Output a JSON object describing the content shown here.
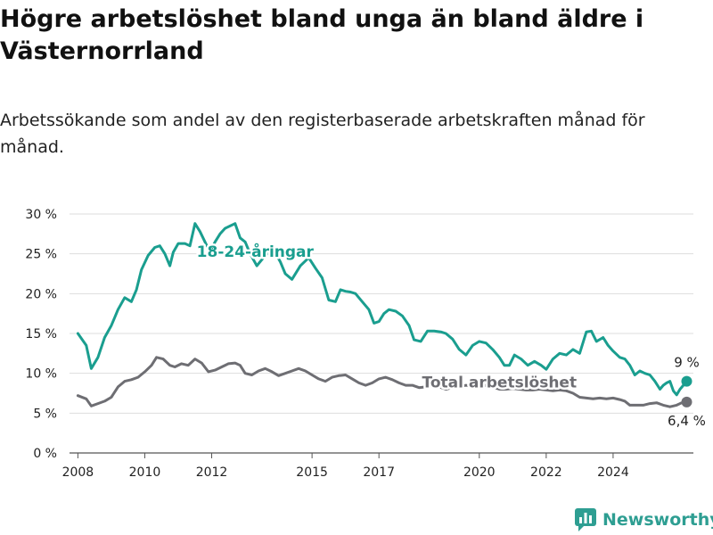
{
  "title": "Högre arbetslöshet bland unga än bland äldre i Västernorrland",
  "subtitle": "Arbetssökande som andel av den registerbaserade arbetskraften månad för månad.",
  "brand": {
    "name": "Newsworthy",
    "icon": "bar-chart-logo-icon",
    "color": "#2e9e92"
  },
  "chart_data": {
    "type": "line",
    "ylim": [
      0,
      30
    ],
    "xlim": [
      2007.5,
      2025.75
    ],
    "y_ticks": [
      0,
      5,
      10,
      15,
      20,
      25,
      30
    ],
    "y_tick_labels": [
      "0 %",
      "5 %",
      "10 %",
      "15 %",
      "20 %",
      "25 %",
      "30 %"
    ],
    "x_ticks": [
      2008,
      2010,
      2012,
      2015,
      2017,
      2020,
      2022,
      2024
    ],
    "x_tick_labels": [
      "2008",
      "2010",
      "2012",
      "2015",
      "2017",
      "2020",
      "2022",
      "2024"
    ],
    "grid": "horizontal",
    "series": [
      {
        "name": "18-24-åringar",
        "color": "#1a9e8f",
        "end_label": "9 %",
        "points": [
          [
            2008.0,
            15.0
          ],
          [
            2008.25,
            13.5
          ],
          [
            2008.4,
            10.6
          ],
          [
            2008.6,
            12.0
          ],
          [
            2008.8,
            14.5
          ],
          [
            2009.0,
            16.0
          ],
          [
            2009.2,
            18.0
          ],
          [
            2009.4,
            19.5
          ],
          [
            2009.6,
            19.0
          ],
          [
            2009.75,
            20.5
          ],
          [
            2009.9,
            23.0
          ],
          [
            2010.1,
            24.8
          ],
          [
            2010.3,
            25.8
          ],
          [
            2010.45,
            26.0
          ],
          [
            2010.6,
            25.0
          ],
          [
            2010.75,
            23.5
          ],
          [
            2010.85,
            25.2
          ],
          [
            2011.0,
            26.3
          ],
          [
            2011.2,
            26.3
          ],
          [
            2011.35,
            26.0
          ],
          [
            2011.5,
            28.8
          ],
          [
            2011.65,
            27.8
          ],
          [
            2011.8,
            26.5
          ],
          [
            2011.95,
            25.2
          ],
          [
            2012.1,
            26.5
          ],
          [
            2012.25,
            27.5
          ],
          [
            2012.4,
            28.2
          ],
          [
            2012.55,
            28.5
          ],
          [
            2012.7,
            28.8
          ],
          [
            2012.85,
            27.0
          ],
          [
            2013.0,
            26.5
          ],
          [
            2013.15,
            25.0
          ],
          [
            2013.35,
            23.5
          ],
          [
            2013.6,
            24.8
          ],
          [
            2013.85,
            25.5
          ],
          [
            2014.05,
            24.0
          ],
          [
            2014.2,
            22.5
          ],
          [
            2014.4,
            21.8
          ],
          [
            2014.65,
            23.5
          ],
          [
            2014.9,
            24.5
          ],
          [
            2015.1,
            23.2
          ],
          [
            2015.3,
            22.0
          ],
          [
            2015.5,
            19.2
          ],
          [
            2015.7,
            19.0
          ],
          [
            2015.85,
            20.5
          ],
          [
            2016.0,
            20.3
          ],
          [
            2016.15,
            20.2
          ],
          [
            2016.3,
            20.0
          ],
          [
            2016.5,
            19.0
          ],
          [
            2016.7,
            18.0
          ],
          [
            2016.85,
            16.3
          ],
          [
            2017.0,
            16.5
          ],
          [
            2017.15,
            17.5
          ],
          [
            2017.3,
            18.0
          ],
          [
            2017.5,
            17.8
          ],
          [
            2017.7,
            17.2
          ],
          [
            2017.9,
            16.0
          ],
          [
            2018.05,
            14.2
          ],
          [
            2018.25,
            14.0
          ],
          [
            2018.45,
            15.3
          ],
          [
            2018.65,
            15.3
          ],
          [
            2018.85,
            15.2
          ],
          [
            2019.0,
            15.0
          ],
          [
            2019.2,
            14.3
          ],
          [
            2019.4,
            13.0
          ],
          [
            2019.6,
            12.3
          ],
          [
            2019.8,
            13.5
          ],
          [
            2020.0,
            14.0
          ],
          [
            2020.2,
            13.8
          ],
          [
            2020.4,
            13.0
          ],
          [
            2020.6,
            12.0
          ],
          [
            2020.75,
            11.0
          ],
          [
            2020.9,
            11.0
          ],
          [
            2021.05,
            12.3
          ],
          [
            2021.25,
            11.8
          ],
          [
            2021.45,
            11.0
          ],
          [
            2021.65,
            11.5
          ],
          [
            2021.85,
            11.0
          ],
          [
            2022.0,
            10.5
          ],
          [
            2022.2,
            11.8
          ],
          [
            2022.4,
            12.5
          ],
          [
            2022.6,
            12.3
          ],
          [
            2022.8,
            13.0
          ],
          [
            2023.0,
            12.5
          ],
          [
            2023.2,
            15.2
          ],
          [
            2023.35,
            15.3
          ],
          [
            2023.5,
            14.0
          ],
          [
            2023.7,
            14.5
          ],
          [
            2023.85,
            13.5
          ],
          [
            2024.0,
            12.8
          ],
          [
            2024.2,
            12.0
          ],
          [
            2024.35,
            11.8
          ],
          [
            2024.5,
            11.0
          ],
          [
            2024.65,
            9.8
          ],
          [
            2024.8,
            10.3
          ],
          [
            2024.95,
            10.0
          ],
          [
            2025.1,
            9.8
          ],
          [
            2025.25,
            9.0
          ],
          [
            2025.4,
            8.0
          ],
          [
            2025.5,
            8.5
          ],
          [
            2025.6,
            8.8
          ],
          [
            2025.7,
            9.0
          ],
          [
            2025.8,
            7.8
          ],
          [
            2025.9,
            7.3
          ],
          [
            2026.0,
            8.0
          ],
          [
            2026.1,
            8.5
          ],
          [
            2026.2,
            9.0
          ]
        ]
      },
      {
        "name": "Total arbetslöshet",
        "color": "#6e6e73",
        "end_label": "6,4 %",
        "points": [
          [
            2008.0,
            7.2
          ],
          [
            2008.25,
            6.8
          ],
          [
            2008.4,
            5.9
          ],
          [
            2008.6,
            6.2
          ],
          [
            2008.8,
            6.5
          ],
          [
            2009.0,
            7.0
          ],
          [
            2009.2,
            8.3
          ],
          [
            2009.4,
            9.0
          ],
          [
            2009.6,
            9.2
          ],
          [
            2009.8,
            9.5
          ],
          [
            2010.0,
            10.2
          ],
          [
            2010.2,
            11.0
          ],
          [
            2010.35,
            12.0
          ],
          [
            2010.55,
            11.8
          ],
          [
            2010.75,
            11.0
          ],
          [
            2010.9,
            10.8
          ],
          [
            2011.1,
            11.2
          ],
          [
            2011.3,
            11.0
          ],
          [
            2011.5,
            11.8
          ],
          [
            2011.7,
            11.3
          ],
          [
            2011.9,
            10.2
          ],
          [
            2012.1,
            10.4
          ],
          [
            2012.3,
            10.8
          ],
          [
            2012.5,
            11.2
          ],
          [
            2012.7,
            11.3
          ],
          [
            2012.85,
            11.0
          ],
          [
            2013.0,
            10.0
          ],
          [
            2013.2,
            9.8
          ],
          [
            2013.4,
            10.3
          ],
          [
            2013.6,
            10.6
          ],
          [
            2013.8,
            10.2
          ],
          [
            2014.0,
            9.7
          ],
          [
            2014.2,
            10.0
          ],
          [
            2014.4,
            10.3
          ],
          [
            2014.6,
            10.6
          ],
          [
            2014.8,
            10.3
          ],
          [
            2015.0,
            9.8
          ],
          [
            2015.2,
            9.3
          ],
          [
            2015.4,
            9.0
          ],
          [
            2015.6,
            9.5
          ],
          [
            2015.8,
            9.7
          ],
          [
            2016.0,
            9.8
          ],
          [
            2016.2,
            9.3
          ],
          [
            2016.4,
            8.8
          ],
          [
            2016.6,
            8.5
          ],
          [
            2016.8,
            8.8
          ],
          [
            2017.0,
            9.3
          ],
          [
            2017.2,
            9.5
          ],
          [
            2017.4,
            9.2
          ],
          [
            2017.6,
            8.8
          ],
          [
            2017.8,
            8.5
          ],
          [
            2018.0,
            8.5
          ],
          [
            2018.2,
            8.2
          ],
          [
            2018.4,
            8.3
          ],
          [
            2018.6,
            8.5
          ],
          [
            2018.8,
            8.3
          ],
          [
            2019.0,
            8.0
          ],
          [
            2019.2,
            8.2
          ],
          [
            2019.4,
            8.3
          ],
          [
            2019.6,
            8.5
          ],
          [
            2019.8,
            8.3
          ],
          [
            2020.0,
            8.2
          ],
          [
            2020.2,
            8.5
          ],
          [
            2020.4,
            8.3
          ],
          [
            2020.6,
            8.0
          ],
          [
            2020.8,
            8.0
          ],
          [
            2021.0,
            8.1
          ],
          [
            2021.2,
            8.0
          ],
          [
            2021.4,
            7.9
          ],
          [
            2021.6,
            7.9
          ],
          [
            2021.8,
            8.0
          ],
          [
            2022.0,
            7.9
          ],
          [
            2022.2,
            7.8
          ],
          [
            2022.4,
            7.9
          ],
          [
            2022.6,
            7.8
          ],
          [
            2022.8,
            7.5
          ],
          [
            2023.0,
            7.0
          ],
          [
            2023.2,
            6.9
          ],
          [
            2023.4,
            6.8
          ],
          [
            2023.6,
            6.9
          ],
          [
            2023.8,
            6.8
          ],
          [
            2024.0,
            6.9
          ],
          [
            2024.2,
            6.7
          ],
          [
            2024.35,
            6.5
          ],
          [
            2024.5,
            6.0
          ],
          [
            2024.7,
            6.0
          ],
          [
            2024.9,
            6.0
          ],
          [
            2025.1,
            6.2
          ],
          [
            2025.3,
            6.3
          ],
          [
            2025.5,
            6.0
          ],
          [
            2025.7,
            5.8
          ],
          [
            2025.9,
            6.0
          ],
          [
            2026.05,
            6.3
          ],
          [
            2026.2,
            6.4
          ]
        ]
      }
    ],
    "annotations": [
      {
        "text": "18-24-åringar",
        "series": 0,
        "x": 2013.3,
        "y": 24.6
      },
      {
        "text": "Total arbetslöshet",
        "series": 1,
        "x": 2020.6,
        "y": 8.2
      }
    ]
  }
}
